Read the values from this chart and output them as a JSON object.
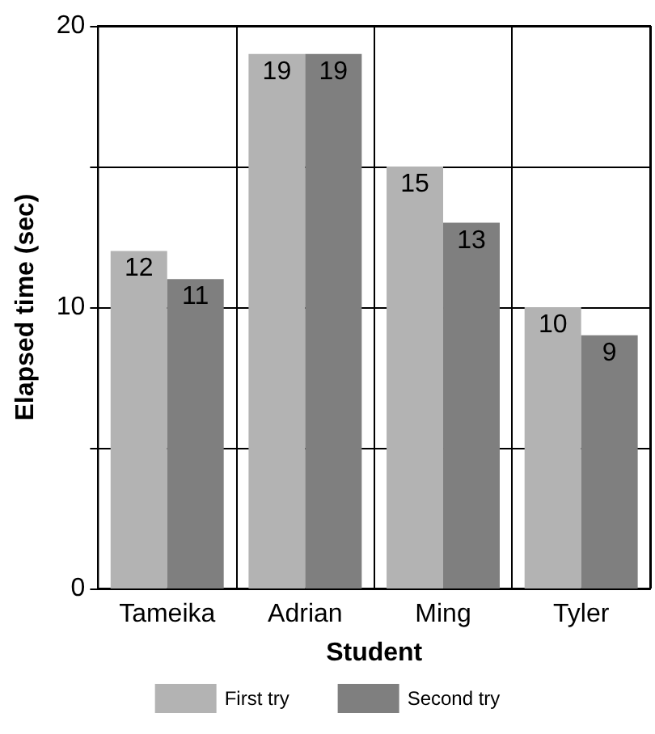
{
  "chart_data": {
    "type": "bar",
    "xlabel": "Student",
    "ylabel": "Elapsed time (sec)",
    "categories": [
      "Tameika",
      "Adrian",
      "Ming",
      "Tyler"
    ],
    "series": [
      {
        "name": "First try",
        "color": "#b3b3b3",
        "values": [
          12,
          19,
          15,
          10
        ]
      },
      {
        "name": "Second try",
        "color": "#7f7f7f",
        "values": [
          11,
          19,
          13,
          9
        ]
      }
    ],
    "ylim": [
      0,
      20
    ],
    "yticks": [
      0,
      {
        "value": 5,
        "label": null
      },
      10,
      {
        "value": 15,
        "label": null
      },
      20
    ],
    "grid": true,
    "legend": "bottom",
    "data_labels": true
  }
}
